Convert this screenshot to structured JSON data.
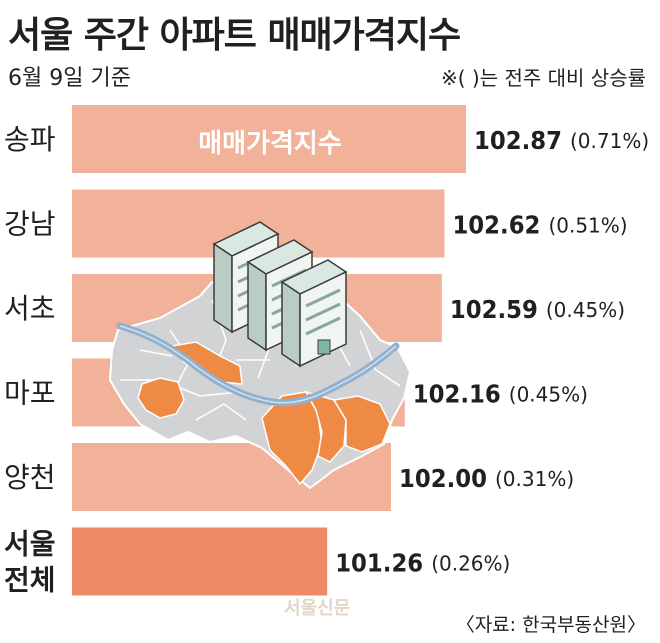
{
  "header": {
    "title": "서울 주간 아파트 매매가격지수",
    "subtitle": "6월 9일 기준",
    "note": "※( )는 전주 대비 상승률"
  },
  "footer": {
    "source": "〈자료: 한국부동산원〉",
    "watermark": "서울신문"
  },
  "colors": {
    "bar": "#f2b29a",
    "bar_highlight": "#ee8a66",
    "map_fill": "#d2d3d5",
    "map_district_highlight": "#ef8a45",
    "river": "#8fb1cf"
  },
  "chart_data": {
    "type": "bar",
    "orientation": "horizontal",
    "title": "서울 주간 아파트 매매가격지수",
    "inner_label": "매매가격지수",
    "categories": [
      "송파",
      "강남",
      "서초",
      "마포",
      "양천",
      "서울 전체"
    ],
    "category_lines": [
      [
        "송파"
      ],
      [
        "강남"
      ],
      [
        "서초"
      ],
      [
        "마포"
      ],
      [
        "양천"
      ],
      [
        "서울",
        "전체"
      ]
    ],
    "values": [
      102.87,
      102.62,
      102.59,
      102.16,
      102.0,
      101.26
    ],
    "value_labels": [
      "102.87",
      "102.62",
      "102.59",
      "102.16",
      "102.00",
      "101.26"
    ],
    "change_labels": [
      "(0.71%)",
      "(0.51%)",
      "(0.45%)",
      "(0.45%)",
      "(0.31%)",
      "(0.26%)"
    ],
    "change_percent": [
      0.71,
      0.51,
      0.45,
      0.45,
      0.31,
      0.26
    ],
    "highlight_index": 5,
    "xlim": [
      98.3,
      102.87
    ],
    "grid": false,
    "legend": "none"
  }
}
